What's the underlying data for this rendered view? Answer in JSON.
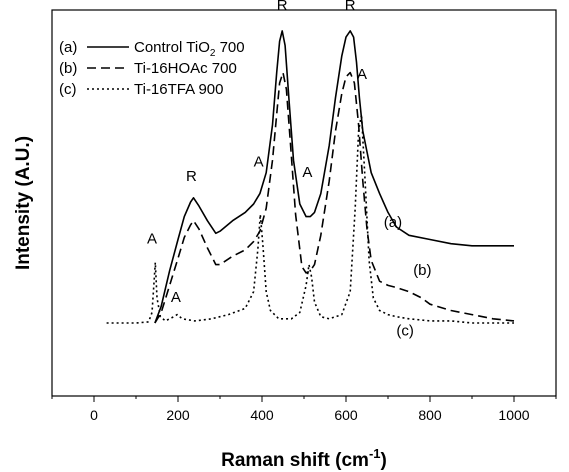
{
  "chart_data": {
    "type": "line",
    "xlabel": "Raman shift (cm",
    "xlabel_sup": "-1",
    "xlabel_close": ")",
    "ylabel": "Intensity (A.U.)",
    "xlim": [
      -100,
      1100
    ],
    "ylim": [
      -0.35,
      1.5
    ],
    "xticks": [
      "0",
      "200",
      "400",
      "600",
      "800",
      "1000"
    ],
    "yticks_labeled": false,
    "grid": false,
    "legend": {
      "placement": "top-left",
      "entries": [
        {
          "prefix": "(a)",
          "label": "Control TiO",
          "label_sub": "2",
          "label_suffix": " 700",
          "dash": "solid"
        },
        {
          "prefix": "(b)",
          "label": "Ti-16HOAc 700",
          "dash": "dashed"
        },
        {
          "prefix": "(c)",
          "label": "Ti-16TFA 900",
          "dash": "dotted"
        }
      ]
    },
    "series": [
      {
        "id": "(a)",
        "dash": "solid",
        "x": [
          145,
          160,
          180,
          200,
          215,
          230,
          237,
          250,
          270,
          290,
          300,
          330,
          360,
          380,
          395,
          410,
          425,
          435,
          442,
          448,
          455,
          465,
          475,
          490,
          505,
          515,
          525,
          540,
          560,
          575,
          590,
          600,
          610,
          618,
          625,
          632,
          640,
          650,
          660,
          680,
          700,
          720,
          750,
          800,
          850,
          900,
          950,
          1000
        ],
        "y": [
          0.0,
          0.08,
          0.25,
          0.4,
          0.51,
          0.58,
          0.6,
          0.56,
          0.49,
          0.43,
          0.44,
          0.49,
          0.53,
          0.57,
          0.62,
          0.72,
          0.95,
          1.2,
          1.35,
          1.4,
          1.33,
          1.05,
          0.78,
          0.57,
          0.51,
          0.51,
          0.53,
          0.62,
          0.85,
          1.08,
          1.28,
          1.37,
          1.4,
          1.37,
          1.25,
          1.08,
          0.92,
          0.82,
          0.72,
          0.62,
          0.53,
          0.46,
          0.42,
          0.4,
          0.38,
          0.37,
          0.37,
          0.37
        ]
      },
      {
        "id": "(b)",
        "dash": "dashed",
        "x": [
          145,
          160,
          180,
          200,
          215,
          230,
          237,
          250,
          270,
          290,
          300,
          330,
          360,
          380,
          395,
          410,
          425,
          435,
          442,
          450,
          458,
          468,
          480,
          495,
          505,
          515,
          525,
          540,
          560,
          575,
          590,
          600,
          610,
          620,
          630,
          640,
          650,
          660,
          680,
          700,
          720,
          750,
          780,
          800,
          850,
          900,
          950,
          1000
        ],
        "y": [
          0.0,
          0.05,
          0.18,
          0.31,
          0.41,
          0.47,
          0.49,
          0.45,
          0.36,
          0.28,
          0.28,
          0.32,
          0.35,
          0.39,
          0.44,
          0.55,
          0.78,
          1.0,
          1.15,
          1.2,
          1.12,
          0.85,
          0.52,
          0.27,
          0.24,
          0.25,
          0.28,
          0.42,
          0.68,
          0.92,
          1.1,
          1.18,
          1.2,
          1.15,
          0.95,
          0.68,
          0.45,
          0.3,
          0.2,
          0.18,
          0.17,
          0.15,
          0.12,
          0.09,
          0.06,
          0.04,
          0.02,
          0.01
        ]
      },
      {
        "id": "(c)",
        "dash": "dotted",
        "x": [
          30,
          60,
          100,
          130,
          138,
          143,
          146,
          150,
          158,
          170,
          190,
          198,
          210,
          240,
          280,
          320,
          360,
          380,
          390,
          396,
          402,
          410,
          420,
          440,
          470,
          490,
          505,
          512,
          518,
          525,
          540,
          560,
          590,
          610,
          622,
          630,
          637,
          645,
          655,
          665,
          680,
          700,
          720,
          750,
          800,
          850,
          900,
          950,
          1000
        ],
        "y": [
          0.0,
          0.0,
          0.0,
          0.005,
          0.05,
          0.2,
          0.29,
          0.12,
          0.03,
          0.01,
          0.03,
          0.04,
          0.02,
          0.01,
          0.02,
          0.04,
          0.07,
          0.15,
          0.35,
          0.52,
          0.38,
          0.15,
          0.06,
          0.02,
          0.02,
          0.05,
          0.18,
          0.28,
          0.22,
          0.1,
          0.03,
          0.02,
          0.04,
          0.15,
          0.55,
          0.92,
          1.0,
          0.7,
          0.3,
          0.12,
          0.06,
          0.04,
          0.03,
          0.02,
          0.01,
          0.01,
          0.0,
          0.0,
          0.0
        ]
      }
    ],
    "curve_labels": [
      {
        "text": "(a)",
        "x": 690,
        "y": 0.46
      },
      {
        "text": "(b)",
        "x": 760,
        "y": 0.23
      },
      {
        "text": "(c)",
        "x": 720,
        "y": -0.06
      }
    ],
    "annotations": [
      {
        "text": "R",
        "x": 448,
        "y": 1.5
      },
      {
        "text": "R",
        "x": 610,
        "y": 1.5
      },
      {
        "text": "A",
        "x": 638,
        "y": 1.17
      },
      {
        "text": "R",
        "x": 232,
        "y": 0.68
      },
      {
        "text": "A",
        "x": 392,
        "y": 0.75
      },
      {
        "text": "A",
        "x": 508,
        "y": 0.7
      },
      {
        "text": "A",
        "x": 138,
        "y": 0.38
      },
      {
        "text": "A",
        "x": 195,
        "y": 0.1
      }
    ]
  }
}
